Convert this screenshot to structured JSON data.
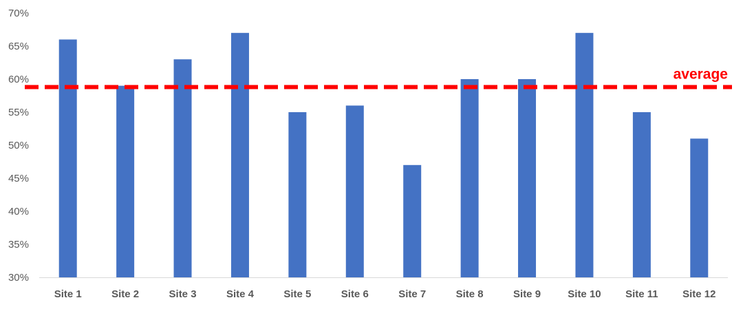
{
  "chart_data": {
    "type": "bar",
    "title": "",
    "xlabel": "",
    "ylabel": "",
    "categories": [
      "Site 1",
      "Site 2",
      "Site 3",
      "Site 4",
      "Site 5",
      "Site 6",
      "Site 7",
      "Site 8",
      "Site 9",
      "Site 10",
      "Site 11",
      "Site 12"
    ],
    "values": [
      66,
      59,
      63,
      67,
      55,
      56,
      47,
      60,
      60,
      67,
      55,
      51
    ],
    "value_unit": "%",
    "ylim": [
      30,
      70
    ],
    "yticks": [
      "30%",
      "35%",
      "40%",
      "45%",
      "50%",
      "55%",
      "60%",
      "65%",
      "70%"
    ],
    "grid": false,
    "legend": "none",
    "bar_color": "#4472C4",
    "reference_line": {
      "label": "average",
      "value": 58.8,
      "style": "dashed",
      "color": "#FF0000"
    }
  }
}
